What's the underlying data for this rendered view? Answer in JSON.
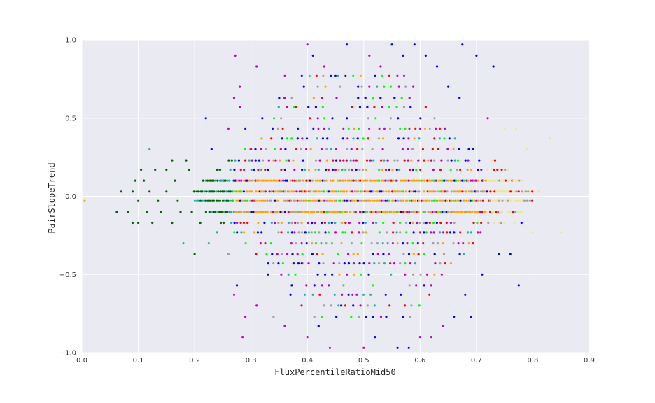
{
  "chart_data": {
    "type": "scatter",
    "xlabel": "FluxPercentileRatioMid50",
    "ylabel": "PairSlopeTrend",
    "xlim": [
      0.0,
      0.9
    ],
    "ylim": [
      -1.0,
      1.0
    ],
    "x_ticks": [
      0.0,
      0.1,
      0.2,
      0.3,
      0.4,
      0.5,
      0.6,
      0.7,
      0.8,
      0.9
    ],
    "x_tick_labels": [
      "0.0",
      "0.1",
      "0.2",
      "0.3",
      "0.4",
      "0.5",
      "0.6",
      "0.7",
      "0.8",
      "0.9"
    ],
    "y_ticks": [
      -1.0,
      -0.5,
      0.0,
      0.5,
      1.0
    ],
    "y_tick_labels": [
      "−1.0",
      "−0.5",
      "0.0",
      "0.5",
      "1.0"
    ],
    "grid": true,
    "background": "#eaeaf2",
    "grid_color": "#ffffff",
    "y_levels_step": 0.0667,
    "series": [
      {
        "color": "#006400",
        "values_summary": "dark green points concentrated at low x",
        "x_range": [
          0.06,
          0.3
        ],
        "y_range": [
          -0.37,
          0.23
        ]
      },
      {
        "color": "#20b2aa",
        "values_summary": "teal points",
        "x_range": [
          0.12,
          0.45
        ],
        "y_range": [
          -0.3,
          0.3
        ]
      },
      {
        "color": "#ffa500",
        "values_summary": "orange points forming dense center band",
        "x_range": [
          0.005,
          0.7
        ],
        "y_range": [
          -0.1,
          0.1
        ]
      },
      {
        "color": "#00ff00",
        "values_summary": "bright green points",
        "x_range": [
          0.25,
          0.72
        ],
        "y_range": [
          -0.2,
          0.3
        ]
      },
      {
        "color": "#f0e68c",
        "values_summary": "khaki points extending to high x",
        "x_range": [
          0.6,
          0.85
        ],
        "y_range": [
          -0.37,
          0.43
        ]
      },
      {
        "color": "#a0a0a0",
        "values_summary": "grey points",
        "x_range": [
          0.28,
          0.8
        ],
        "y_range": [
          -0.77,
          0.5
        ]
      },
      {
        "color": "#ff0000",
        "values_summary": "red points",
        "x_range": [
          0.3,
          0.8
        ],
        "y_range": [
          -0.5,
          0.5
        ]
      },
      {
        "color": "#c000c0",
        "values_summary": "magenta points widely spread",
        "x_range": [
          0.26,
          0.7
        ],
        "y_range": [
          -0.97,
          0.97
        ]
      },
      {
        "color": "#0000ff",
        "values_summary": "blue points widely spread",
        "x_range": [
          0.22,
          0.78
        ],
        "y_range": [
          -0.97,
          0.97
        ]
      }
    ],
    "points": [
      [
        0.005,
        -0.03,
        2
      ],
      [
        0.062,
        -0.1,
        0
      ],
      [
        0.07,
        0.03,
        0
      ],
      [
        0.082,
        -0.1,
        0
      ],
      [
        0.09,
        -0.17,
        0
      ],
      [
        0.09,
        0.03,
        0
      ],
      [
        0.095,
        0.1,
        0
      ],
      [
        0.1,
        -0.03,
        0
      ],
      [
        0.1,
        -0.17,
        0
      ],
      [
        0.105,
        0.17,
        0
      ],
      [
        0.11,
        0.1,
        0
      ],
      [
        0.115,
        -0.1,
        0
      ],
      [
        0.12,
        0.03,
        0
      ],
      [
        0.12,
        0.3,
        1
      ],
      [
        0.125,
        -0.17,
        0
      ],
      [
        0.13,
        0.17,
        0
      ],
      [
        0.135,
        -0.03,
        0
      ],
      [
        0.14,
        -0.1,
        0
      ],
      [
        0.15,
        0.03,
        0
      ],
      [
        0.15,
        0.17,
        0
      ],
      [
        0.16,
        0.23,
        0
      ],
      [
        0.16,
        -0.17,
        0
      ],
      [
        0.165,
        0.1,
        0
      ],
      [
        0.17,
        -0.03,
        0
      ],
      [
        0.175,
        -0.1,
        0
      ],
      [
        0.18,
        -0.3,
        1
      ],
      [
        0.185,
        0.23,
        0
      ],
      [
        0.19,
        0.17,
        0
      ],
      [
        0.195,
        -0.1,
        0
      ],
      [
        0.2,
        0.03,
        0
      ],
      [
        0.2,
        -0.37,
        0
      ],
      [
        0.21,
        -0.17,
        0
      ],
      [
        0.215,
        0.1,
        0
      ],
      [
        0.22,
        -0.03,
        0
      ],
      [
        0.22,
        0.5,
        8
      ],
      [
        0.225,
        -0.3,
        1
      ],
      [
        0.23,
        0.3,
        8
      ],
      [
        0.24,
        0.17,
        0
      ],
      [
        0.24,
        -0.23,
        1
      ],
      [
        0.25,
        -0.03,
        0
      ],
      [
        0.25,
        0.1,
        1
      ],
      [
        0.26,
        -0.37,
        5
      ],
      [
        0.26,
        0.43,
        7
      ],
      [
        0.27,
        -0.63,
        7
      ],
      [
        0.27,
        0.63,
        7
      ],
      [
        0.272,
        0.9,
        7
      ],
      [
        0.275,
        -0.57,
        8
      ],
      [
        0.28,
        0.7,
        7
      ],
      [
        0.28,
        0.57,
        7
      ],
      [
        0.285,
        -0.9,
        7
      ],
      [
        0.29,
        -0.77,
        7
      ],
      [
        0.29,
        0.43,
        8
      ],
      [
        0.3,
        0.3,
        6
      ],
      [
        0.31,
        -0.7,
        7
      ],
      [
        0.31,
        0.83,
        7
      ],
      [
        0.32,
        0.5,
        8
      ],
      [
        0.33,
        -0.5,
        8
      ],
      [
        0.34,
        0.23,
        2
      ],
      [
        0.34,
        -0.77,
        5
      ],
      [
        0.35,
        0.63,
        8
      ],
      [
        0.36,
        -0.83,
        7
      ],
      [
        0.36,
        0.77,
        7
      ],
      [
        0.37,
        -0.63,
        8
      ],
      [
        0.38,
        0.57,
        6
      ],
      [
        0.39,
        -0.43,
        8
      ],
      [
        0.4,
        0.97,
        7
      ],
      [
        0.4,
        -0.9,
        7
      ],
      [
        0.41,
        0.9,
        8
      ],
      [
        0.42,
        -0.83,
        8
      ],
      [
        0.43,
        0.83,
        7
      ],
      [
        0.44,
        -0.97,
        7
      ],
      [
        0.45,
        0.77,
        8
      ],
      [
        0.46,
        -0.7,
        8
      ],
      [
        0.47,
        0.97,
        8
      ],
      [
        0.48,
        -0.63,
        7
      ],
      [
        0.49,
        0.7,
        8
      ],
      [
        0.5,
        -0.97,
        7
      ],
      [
        0.51,
        0.9,
        7
      ],
      [
        0.52,
        -0.9,
        8
      ],
      [
        0.53,
        0.83,
        7
      ],
      [
        0.54,
        -0.77,
        8
      ],
      [
        0.55,
        0.97,
        8
      ],
      [
        0.56,
        -0.97,
        8
      ],
      [
        0.57,
        0.9,
        8
      ],
      [
        0.58,
        -0.97,
        8
      ],
      [
        0.59,
        0.97,
        8
      ],
      [
        0.6,
        -0.9,
        7
      ],
      [
        0.61,
        0.9,
        8
      ],
      [
        0.62,
        -0.9,
        7
      ],
      [
        0.63,
        0.83,
        8
      ],
      [
        0.64,
        -0.83,
        7
      ],
      [
        0.65,
        0.7,
        8
      ],
      [
        0.66,
        -0.77,
        8
      ],
      [
        0.67,
        0.63,
        8
      ],
      [
        0.675,
        0.97,
        8
      ],
      [
        0.68,
        -0.63,
        8
      ],
      [
        0.69,
        -0.77,
        8
      ],
      [
        0.7,
        0.9,
        8
      ],
      [
        0.71,
        -0.5,
        8
      ],
      [
        0.72,
        0.5,
        7
      ],
      [
        0.73,
        0.83,
        8
      ],
      [
        0.74,
        -0.37,
        8
      ],
      [
        0.75,
        0.43,
        4
      ],
      [
        0.76,
        -0.37,
        8
      ],
      [
        0.77,
        0.43,
        4
      ],
      [
        0.775,
        -0.57,
        8
      ],
      [
        0.78,
        -0.17,
        8
      ],
      [
        0.79,
        0.3,
        4
      ],
      [
        0.8,
        -0.23,
        4
      ],
      [
        0.81,
        0.03,
        4
      ],
      [
        0.83,
        0.37,
        4
      ],
      [
        0.85,
        -0.23,
        4
      ]
    ],
    "dense_bands": [
      {
        "y": -0.1,
        "x_from": 0.22,
        "x_to": 0.78
      },
      {
        "y": -0.03,
        "x_from": 0.2,
        "x_to": 0.8
      },
      {
        "y": 0.03,
        "x_from": 0.2,
        "x_to": 0.8
      },
      {
        "y": 0.1,
        "x_from": 0.22,
        "x_to": 0.78
      },
      {
        "y": -0.17,
        "x_from": 0.24,
        "x_to": 0.77
      },
      {
        "y": 0.17,
        "x_from": 0.24,
        "x_to": 0.76
      },
      {
        "y": -0.23,
        "x_from": 0.27,
        "x_to": 0.72
      },
      {
        "y": 0.23,
        "x_from": 0.26,
        "x_to": 0.74
      },
      {
        "y": -0.3,
        "x_from": 0.29,
        "x_to": 0.7
      },
      {
        "y": 0.3,
        "x_from": 0.29,
        "x_to": 0.7
      },
      {
        "y": -0.37,
        "x_from": 0.31,
        "x_to": 0.68
      },
      {
        "y": 0.37,
        "x_from": 0.31,
        "x_to": 0.67
      },
      {
        "y": -0.43,
        "x_from": 0.33,
        "x_to": 0.66
      },
      {
        "y": 0.43,
        "x_from": 0.33,
        "x_to": 0.65
      },
      {
        "y": -0.5,
        "x_from": 0.34,
        "x_to": 0.64
      },
      {
        "y": 0.5,
        "x_from": 0.34,
        "x_to": 0.63
      },
      {
        "y": -0.57,
        "x_from": 0.36,
        "x_to": 0.63
      },
      {
        "y": 0.57,
        "x_from": 0.35,
        "x_to": 0.62
      },
      {
        "y": -0.63,
        "x_from": 0.37,
        "x_to": 0.62
      },
      {
        "y": 0.63,
        "x_from": 0.36,
        "x_to": 0.6
      },
      {
        "y": -0.7,
        "x_from": 0.39,
        "x_to": 0.6
      },
      {
        "y": 0.7,
        "x_from": 0.38,
        "x_to": 0.59
      },
      {
        "y": -0.77,
        "x_from": 0.4,
        "x_to": 0.6
      },
      {
        "y": 0.77,
        "x_from": 0.39,
        "x_to": 0.58
      }
    ]
  }
}
